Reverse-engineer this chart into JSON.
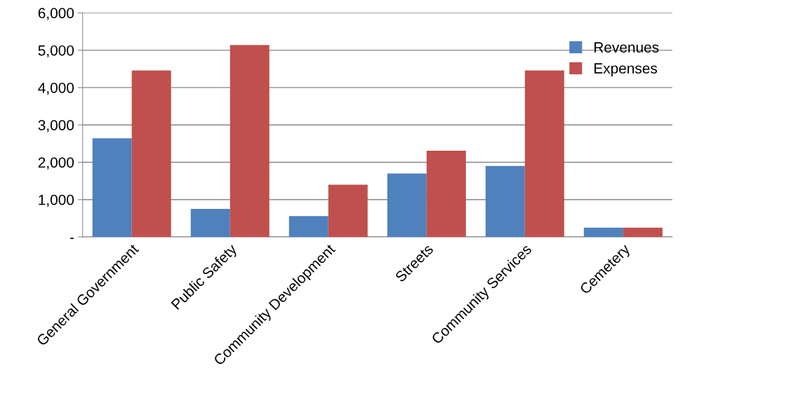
{
  "chart_data": {
    "type": "bar",
    "categories": [
      "General Government",
      "Public Safety",
      "Community Development",
      "Streets",
      "Community Services",
      "Cemetery"
    ],
    "series": [
      {
        "name": "Revenues",
        "color": "#4f81bd",
        "values": [
          2640,
          750,
          560,
          1700,
          1900,
          250
        ]
      },
      {
        "name": "Expenses",
        "color": "#c0504d",
        "values": [
          4460,
          5140,
          1400,
          2310,
          4460,
          250
        ]
      }
    ],
    "ylim": [
      0,
      6000
    ],
    "yticks": [
      {
        "value": 0,
        "label": "-"
      },
      {
        "value": 1000,
        "label": "1,000"
      },
      {
        "value": 2000,
        "label": "2,000"
      },
      {
        "value": 3000,
        "label": "3,000"
      },
      {
        "value": 4000,
        "label": "4,000"
      },
      {
        "value": 5000,
        "label": "5,000"
      },
      {
        "value": 6000,
        "label": "6,000"
      }
    ],
    "grid": "y",
    "legend": "top right"
  }
}
